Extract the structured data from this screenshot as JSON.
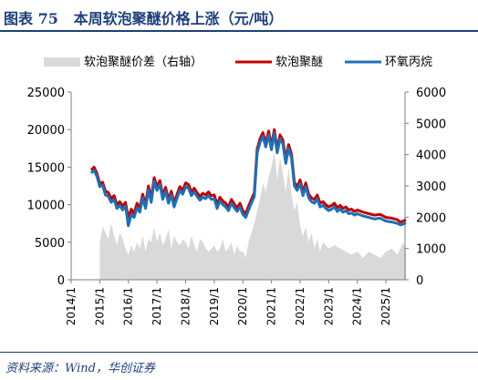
{
  "figure": {
    "label": "图表 75",
    "title": "本周软泡聚醚价格上涨（元/吨）"
  },
  "source": "资料来源：Wind，华创证券",
  "colors": {
    "title": "#1f3f7a",
    "price_diff": "#d9d9d9",
    "soft_foam_polyether": "#c00000",
    "propylene_oxide": "#1f6fb5",
    "axis": "#7f7f7f"
  },
  "chart_data": {
    "type": "line",
    "legend": [
      "软泡聚醚价差（右轴）",
      "软泡聚醚",
      "环氧丙烷"
    ],
    "legend_position": "top",
    "x_ticks": [
      "2014/1",
      "2015/1",
      "2016/1",
      "2017/1",
      "2018/1",
      "2019/1",
      "2020/1",
      "2021/1",
      "2022/1",
      "2023/1",
      "2024/1",
      "2025/1"
    ],
    "x_range": [
      "2014/1",
      "2025/9"
    ],
    "ylim_left": [
      0,
      25000
    ],
    "ylim_right": [
      0,
      6000
    ],
    "y_ticks_left": [
      0,
      5000,
      10000,
      15000,
      20000,
      25000
    ],
    "y_ticks_right": [
      0,
      1000,
      2000,
      3000,
      4000,
      5000,
      6000
    ],
    "grid": false,
    "series": [
      {
        "name": "软泡聚醚价差（右轴）",
        "type": "area",
        "axis": "right",
        "x": [
          2015.0,
          2015.1,
          2015.2,
          2015.3,
          2015.4,
          2015.5,
          2015.6,
          2015.7,
          2015.8,
          2015.9,
          2016.0,
          2016.1,
          2016.2,
          2016.3,
          2016.4,
          2016.5,
          2016.6,
          2016.7,
          2016.8,
          2016.9,
          2017.0,
          2017.1,
          2017.2,
          2017.3,
          2017.4,
          2017.5,
          2017.6,
          2017.7,
          2017.8,
          2017.9,
          2018.0,
          2018.1,
          2018.2,
          2018.3,
          2018.4,
          2018.5,
          2018.6,
          2018.7,
          2018.8,
          2018.9,
          2019.0,
          2019.1,
          2019.2,
          2019.3,
          2019.4,
          2019.5,
          2019.6,
          2019.7,
          2019.8,
          2019.9,
          2020.0,
          2020.1,
          2020.2,
          2020.3,
          2020.4,
          2020.5,
          2020.6,
          2020.7,
          2020.8,
          2020.9,
          2021.0,
          2021.1,
          2021.2,
          2021.3,
          2021.4,
          2021.5,
          2021.6,
          2021.7,
          2021.8,
          2021.9,
          2022.0,
          2022.1,
          2022.2,
          2022.3,
          2022.4,
          2022.5,
          2022.6,
          2022.7,
          2022.8,
          2022.9,
          2023.0,
          2023.2,
          2023.4,
          2023.6,
          2023.8,
          2024.0,
          2024.2,
          2024.4,
          2024.6,
          2024.8,
          2025.0,
          2025.2,
          2025.4,
          2025.6,
          2025.7
        ],
        "values": [
          1200,
          1700,
          1500,
          1300,
          1800,
          1400,
          1100,
          1500,
          1300,
          1000,
          800,
          1100,
          900,
          1200,
          1000,
          1400,
          900,
          1300,
          1200,
          1700,
          1200,
          1500,
          1100,
          1300,
          1600,
          1000,
          1400,
          1200,
          1100,
          1300,
          1200,
          1000,
          1400,
          1100,
          900,
          1300,
          1200,
          1000,
          900,
          1000,
          1100,
          900,
          1000,
          1300,
          900,
          1000,
          1200,
          800,
          1100,
          900,
          900,
          700,
          1200,
          1500,
          1800,
          2200,
          2600,
          3100,
          2800,
          3300,
          3600,
          4100,
          3200,
          3900,
          3400,
          2800,
          3600,
          2700,
          2200,
          2500,
          1700,
          1400,
          1700,
          1200,
          1500,
          1000,
          1300,
          900,
          1200,
          1100,
          1000,
          1100,
          1000,
          900,
          800,
          900,
          700,
          900,
          800,
          700,
          900,
          1000,
          800,
          1200,
          900
        ]
      },
      {
        "name": "软泡聚醚",
        "axis": "left",
        "x": [
          2014.7,
          2014.8,
          2014.9,
          2015.0,
          2015.1,
          2015.2,
          2015.3,
          2015.4,
          2015.5,
          2015.6,
          2015.7,
          2015.8,
          2015.9,
          2016.0,
          2016.1,
          2016.2,
          2016.3,
          2016.4,
          2016.5,
          2016.6,
          2016.7,
          2016.8,
          2016.9,
          2017.0,
          2017.1,
          2017.2,
          2017.3,
          2017.4,
          2017.5,
          2017.6,
          2017.7,
          2017.8,
          2017.9,
          2018.0,
          2018.1,
          2018.2,
          2018.3,
          2018.4,
          2018.5,
          2018.6,
          2018.7,
          2018.8,
          2018.9,
          2019.0,
          2019.1,
          2019.2,
          2019.3,
          2019.4,
          2019.5,
          2019.6,
          2019.7,
          2019.8,
          2019.9,
          2020.0,
          2020.1,
          2020.2,
          2020.3,
          2020.4,
          2020.5,
          2020.6,
          2020.7,
          2020.8,
          2020.9,
          2021.0,
          2021.1,
          2021.2,
          2021.3,
          2021.4,
          2021.5,
          2021.6,
          2021.7,
          2021.8,
          2021.9,
          2022.0,
          2022.1,
          2022.2,
          2022.3,
          2022.4,
          2022.5,
          2022.6,
          2022.7,
          2022.8,
          2022.9,
          2023.0,
          2023.1,
          2023.2,
          2023.3,
          2023.4,
          2023.5,
          2023.6,
          2023.7,
          2023.8,
          2023.9,
          2024.0,
          2024.2,
          2024.4,
          2024.6,
          2024.8,
          2025.0,
          2025.2,
          2025.4,
          2025.5,
          2025.6,
          2025.7
        ],
        "values": [
          14600,
          15000,
          14200,
          12800,
          13000,
          11800,
          11600,
          10800,
          11200,
          10000,
          10400,
          9800,
          10300,
          8200,
          9400,
          8800,
          10200,
          9500,
          11400,
          10000,
          12500,
          10800,
          13600,
          12400,
          13200,
          11200,
          12300,
          10700,
          11800,
          10200,
          11400,
          12400,
          11900,
          12900,
          12700,
          11700,
          12200,
          11600,
          11100,
          11500,
          11300,
          11700,
          11200,
          11300,
          10000,
          11000,
          10500,
          10200,
          9700,
          10700,
          10100,
          9600,
          10200,
          9200,
          8800,
          9800,
          10700,
          11600,
          17400,
          18800,
          19600,
          18200,
          19800,
          17800,
          20000,
          17400,
          19300,
          18600,
          16000,
          18000,
          16700,
          13000,
          12400,
          13300,
          11700,
          12900,
          11400,
          10900,
          10700,
          11300,
          10200,
          10400,
          10000,
          9700,
          9900,
          10200,
          9600,
          9900,
          9500,
          9700,
          9300,
          9400,
          9100,
          9300,
          9000,
          8800,
          8600,
          8700,
          8300,
          8200,
          8000,
          7700,
          7800,
          8000
        ]
      },
      {
        "name": "环氧丙烷",
        "axis": "left",
        "x": [
          2014.7,
          2014.8,
          2014.9,
          2015.0,
          2015.1,
          2015.2,
          2015.3,
          2015.4,
          2015.5,
          2015.6,
          2015.7,
          2015.8,
          2015.9,
          2016.0,
          2016.1,
          2016.2,
          2016.3,
          2016.4,
          2016.5,
          2016.6,
          2016.7,
          2016.8,
          2016.9,
          2017.0,
          2017.1,
          2017.2,
          2017.3,
          2017.4,
          2017.5,
          2017.6,
          2017.7,
          2017.8,
          2017.9,
          2018.0,
          2018.1,
          2018.2,
          2018.3,
          2018.4,
          2018.5,
          2018.6,
          2018.7,
          2018.8,
          2018.9,
          2019.0,
          2019.1,
          2019.2,
          2019.3,
          2019.4,
          2019.5,
          2019.6,
          2019.7,
          2019.8,
          2019.9,
          2020.0,
          2020.1,
          2020.2,
          2020.3,
          2020.4,
          2020.5,
          2020.6,
          2020.7,
          2020.8,
          2020.9,
          2021.0,
          2021.1,
          2021.2,
          2021.3,
          2021.4,
          2021.5,
          2021.6,
          2021.7,
          2021.8,
          2021.9,
          2022.0,
          2022.1,
          2022.2,
          2022.3,
          2022.4,
          2022.5,
          2022.6,
          2022.7,
          2022.8,
          2022.9,
          2023.0,
          2023.1,
          2023.2,
          2023.3,
          2023.4,
          2023.5,
          2023.6,
          2023.7,
          2023.8,
          2023.9,
          2024.0,
          2024.2,
          2024.4,
          2024.6,
          2024.8,
          2025.0,
          2025.2,
          2025.4,
          2025.5,
          2025.6,
          2025.7
        ],
        "values": [
          14200,
          14600,
          13800,
          12400,
          12600,
          11300,
          11100,
          10300,
          10700,
          9500,
          9900,
          9300,
          9800,
          7200,
          8700,
          8300,
          9600,
          9000,
          10900,
          9500,
          12000,
          10300,
          13100,
          11900,
          12700,
          10700,
          11800,
          10200,
          11300,
          9700,
          10900,
          11900,
          11400,
          12400,
          12200,
          11200,
          11700,
          11100,
          10600,
          11000,
          10800,
          11200,
          10700,
          10800,
          9500,
          10500,
          10000,
          9700,
          9200,
          10200,
          9600,
          9100,
          9700,
          8700,
          8300,
          9300,
          10200,
          11100,
          16900,
          18300,
          19100,
          17700,
          19300,
          17300,
          19500,
          16900,
          18800,
          18100,
          15500,
          17500,
          16200,
          12500,
          11900,
          12800,
          11200,
          12400,
          10900,
          10400,
          10200,
          10800,
          9700,
          9900,
          9500,
          9200,
          9400,
          9700,
          9100,
          9400,
          9000,
          9200,
          8800,
          8900,
          8600,
          8800,
          8500,
          8300,
          8100,
          8200,
          7800,
          7700,
          7500,
          7300,
          7400,
          7600
        ]
      }
    ]
  }
}
